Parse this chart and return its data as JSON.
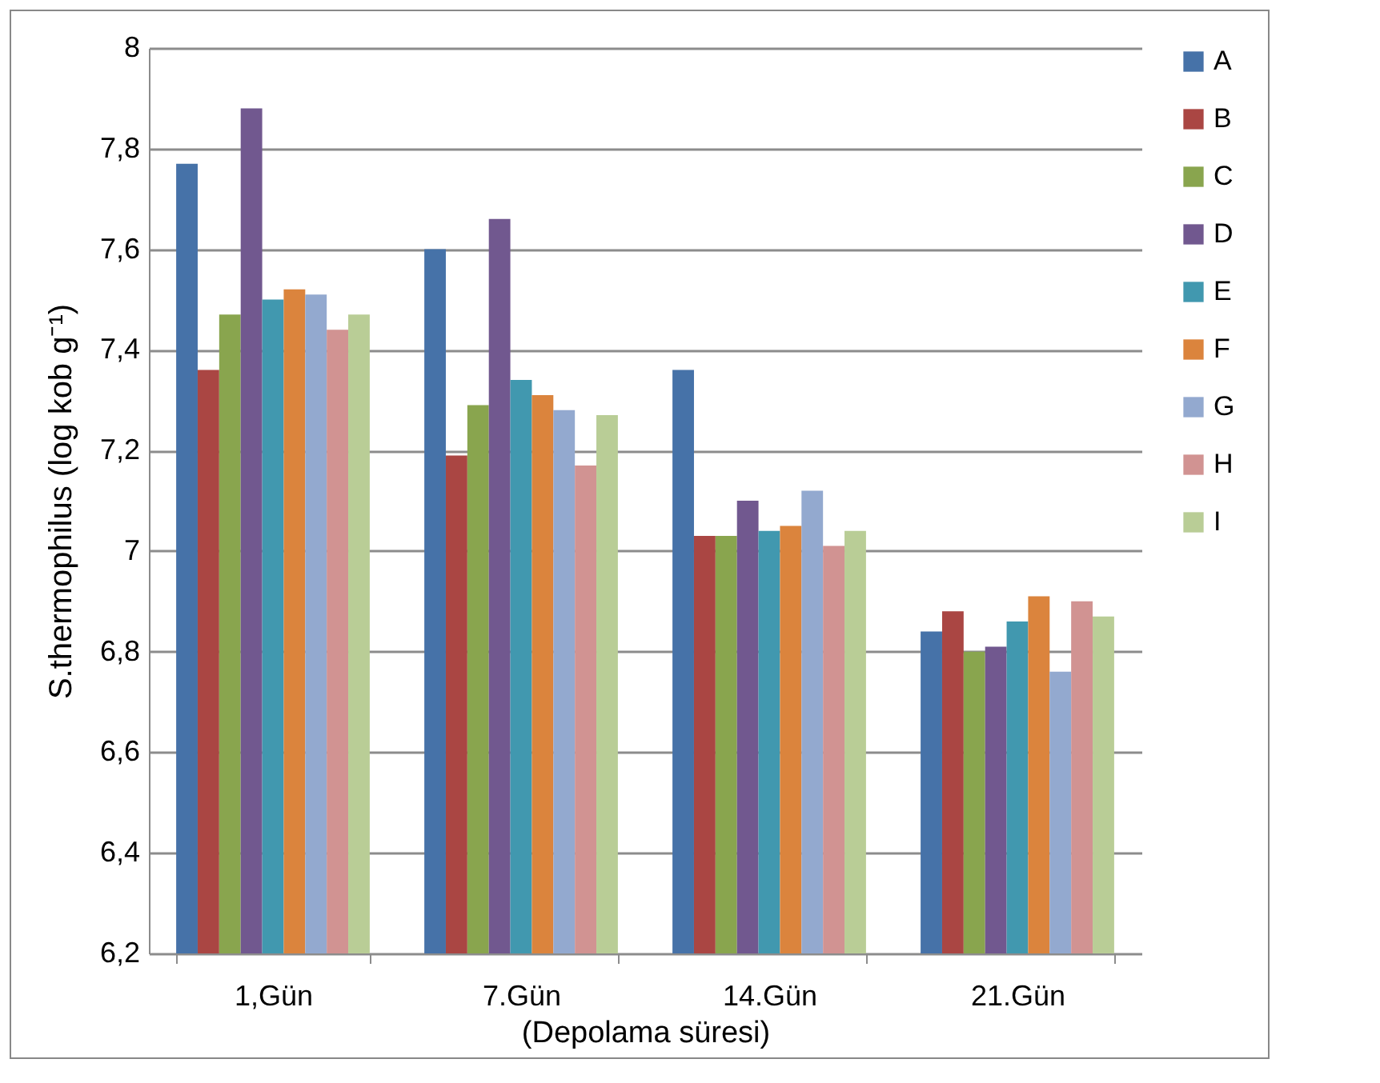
{
  "chart_data": {
    "type": "bar",
    "xlabel": "(Depolama süresi)",
    "ylabel": "S.thermophilus (log kob g⁻¹)",
    "categories": [
      "1,Gün",
      "7.Gün",
      "14.Gün",
      "21.Gün"
    ],
    "series": [
      {
        "name": "A",
        "color": "#4672a8",
        "values": [
          7.77,
          7.6,
          7.36,
          6.84
        ]
      },
      {
        "name": "B",
        "color": "#aa4643",
        "values": [
          7.36,
          7.19,
          7.03,
          6.88
        ]
      },
      {
        "name": "C",
        "color": "#89a54e",
        "values": [
          7.47,
          7.29,
          7.03,
          6.8
        ]
      },
      {
        "name": "D",
        "color": "#71588f",
        "values": [
          7.88,
          7.66,
          7.1,
          6.81
        ]
      },
      {
        "name": "E",
        "color": "#4198af",
        "values": [
          7.5,
          7.34,
          7.04,
          6.86
        ]
      },
      {
        "name": "F",
        "color": "#db843d",
        "values": [
          7.52,
          7.31,
          7.05,
          6.91
        ]
      },
      {
        "name": "G",
        "color": "#93a9cf",
        "values": [
          7.51,
          7.28,
          7.12,
          6.76
        ]
      },
      {
        "name": "H",
        "color": "#d19392",
        "values": [
          7.44,
          7.17,
          7.01,
          6.9
        ]
      },
      {
        "name": "I",
        "color": "#b9cd96",
        "values": [
          7.47,
          7.27,
          7.04,
          6.87
        ]
      }
    ],
    "ylim": [
      6.2,
      8
    ],
    "yticks": [
      {
        "value": 6.2,
        "label": "6,2"
      },
      {
        "value": 6.4,
        "label": "6,4"
      },
      {
        "value": 6.6,
        "label": "6,6"
      },
      {
        "value": 6.8,
        "label": "6,8"
      },
      {
        "value": 7,
        "label": "7"
      },
      {
        "value": 7.2,
        "label": "7,2"
      },
      {
        "value": 7.4,
        "label": "7,4"
      },
      {
        "value": 7.6,
        "label": "7,6"
      },
      {
        "value": 7.8,
        "label": "7,8"
      },
      {
        "value": 8,
        "label": "8"
      }
    ],
    "grid": "y",
    "legend": "right"
  }
}
